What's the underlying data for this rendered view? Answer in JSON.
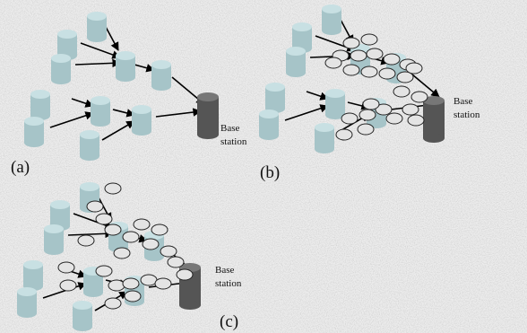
{
  "panels": [
    {
      "label": "(a)",
      "station": [
        "Base",
        "station"
      ]
    },
    {
      "label": "(b)",
      "station": [
        "Base",
        "station"
      ]
    },
    {
      "label": "(c)",
      "station": [
        "Base",
        "station"
      ]
    }
  ]
}
